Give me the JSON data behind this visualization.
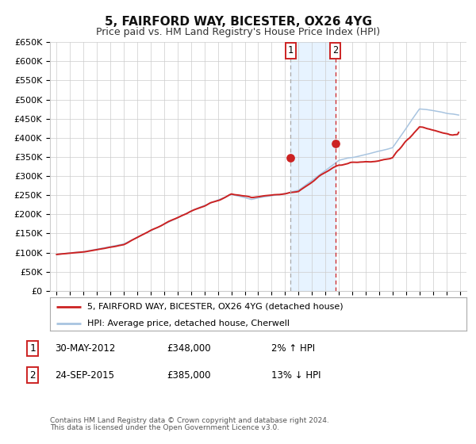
{
  "title": "5, FAIRFORD WAY, BICESTER, OX26 4YG",
  "subtitle": "Price paid vs. HM Land Registry's House Price Index (HPI)",
  "legend_line1": "5, FAIRFORD WAY, BICESTER, OX26 4YG (detached house)",
  "legend_line2": "HPI: Average price, detached house, Cherwell",
  "annotation1_date": "30-MAY-2012",
  "annotation1_price": "£348,000",
  "annotation1_hpi": "2% ↑ HPI",
  "annotation2_date": "24-SEP-2015",
  "annotation2_price": "£385,000",
  "annotation2_hpi": "13% ↓ HPI",
  "footer1": "Contains HM Land Registry data © Crown copyright and database right 2024.",
  "footer2": "This data is licensed under the Open Government Licence v3.0.",
  "hpi_color": "#a8c4e0",
  "price_color": "#cc2222",
  "marker_color": "#cc2222",
  "vline1_color": "#aaaaaa",
  "vline2_color": "#cc2222",
  "shade_color": "#ddeeff",
  "ylim": [
    0,
    650000
  ],
  "yticks": [
    0,
    50000,
    100000,
    150000,
    200000,
    250000,
    300000,
    350000,
    400000,
    450000,
    500000,
    550000,
    600000,
    650000
  ],
  "xlim_left": 1994.5,
  "xlim_right": 2025.5,
  "sale1_year": 2012.42,
  "sale1_value": 348000,
  "sale2_year": 2015.73,
  "sale2_value": 385000,
  "grid_color": "#cccccc",
  "bg_color": "#ffffff",
  "title_fontsize": 11,
  "subtitle_fontsize": 9,
  "tick_fontsize": 8,
  "legend_fontsize": 8,
  "annotation_fontsize": 8.5,
  "footer_fontsize": 6.5
}
